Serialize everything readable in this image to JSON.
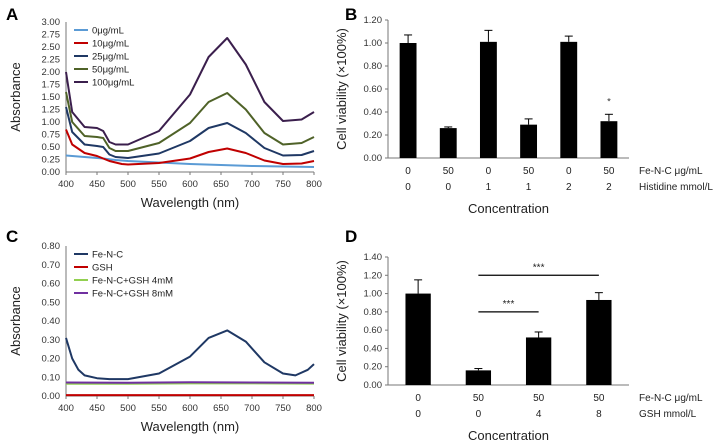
{
  "chart_data": [
    {
      "id": "A",
      "type": "line",
      "panel_label": "A",
      "xlabel": "Wavelength (nm)",
      "ylabel": "Absorbance",
      "xlim": [
        400,
        800
      ],
      "ylim": [
        0,
        3.0
      ],
      "xticks": [
        400,
        450,
        500,
        550,
        600,
        650,
        700,
        750,
        800
      ],
      "yticks": [
        0.0,
        0.25,
        0.5,
        0.75,
        1.0,
        1.25,
        1.5,
        1.75,
        2.0,
        2.25,
        2.5,
        2.75,
        3.0
      ],
      "ytick_labels": [
        "0.00",
        "0.25",
        "0.50",
        "0.75",
        "1.00",
        "1.25",
        "1.50",
        "1.75",
        "2.00",
        "2.25",
        "2.50",
        "2.75",
        "3.00"
      ],
      "xtick_labels": [
        "400",
        "450",
        "500",
        "550",
        "600",
        "650",
        "700",
        "750",
        "800"
      ],
      "legend_position": "top-left",
      "series": [
        {
          "name": "0μg/mL",
          "color": "#5b9bd5",
          "x": [
            400,
            420,
            440,
            460,
            480,
            500,
            550,
            600,
            650,
            700,
            750,
            800
          ],
          "y": [
            0.33,
            0.31,
            0.29,
            0.27,
            0.24,
            0.22,
            0.19,
            0.16,
            0.14,
            0.12,
            0.11,
            0.1
          ]
        },
        {
          "name": "10μg/mL",
          "color": "#c00000",
          "x": [
            400,
            410,
            430,
            450,
            470,
            490,
            500,
            550,
            600,
            630,
            660,
            690,
            720,
            750,
            780,
            800
          ],
          "y": [
            0.85,
            0.55,
            0.38,
            0.32,
            0.22,
            0.16,
            0.15,
            0.18,
            0.27,
            0.4,
            0.47,
            0.38,
            0.23,
            0.16,
            0.17,
            0.22
          ]
        },
        {
          "name": "25μg/mL",
          "color": "#1f3864",
          "x": [
            400,
            410,
            430,
            450,
            460,
            470,
            480,
            500,
            550,
            600,
            630,
            660,
            690,
            720,
            750,
            780,
            800
          ],
          "y": [
            1.3,
            0.8,
            0.55,
            0.52,
            0.5,
            0.35,
            0.3,
            0.28,
            0.37,
            0.62,
            0.88,
            0.98,
            0.78,
            0.48,
            0.33,
            0.34,
            0.42
          ]
        },
        {
          "name": "50μg/mL",
          "color": "#4f6228",
          "x": [
            400,
            410,
            430,
            450,
            460,
            470,
            480,
            500,
            550,
            600,
            630,
            660,
            690,
            720,
            750,
            780,
            800
          ],
          "y": [
            1.6,
            1.0,
            0.72,
            0.7,
            0.68,
            0.48,
            0.42,
            0.42,
            0.58,
            0.98,
            1.4,
            1.58,
            1.25,
            0.78,
            0.55,
            0.58,
            0.7
          ]
        },
        {
          "name": "100μg/mL",
          "color": "#3b1f4d",
          "x": [
            400,
            410,
            430,
            450,
            460,
            470,
            480,
            500,
            550,
            600,
            630,
            660,
            690,
            720,
            750,
            780,
            800
          ],
          "y": [
            2.0,
            1.2,
            0.9,
            0.88,
            0.82,
            0.6,
            0.55,
            0.55,
            0.82,
            1.55,
            2.3,
            2.68,
            2.15,
            1.4,
            1.02,
            1.05,
            1.2
          ]
        }
      ]
    },
    {
      "id": "B",
      "type": "bar",
      "panel_label": "B",
      "ylabel": "Cell viability (×100%)",
      "xlabel": "Concentration",
      "ylim": [
        0,
        1.2
      ],
      "yticks": [
        0,
        0.2,
        0.4,
        0.6,
        0.8,
        1.0,
        1.2
      ],
      "ytick_labels": [
        "0.00",
        "0.20",
        "0.40",
        "0.60",
        "0.80",
        "1.00",
        "1.20"
      ],
      "values": [
        1.0,
        0.26,
        1.01,
        0.29,
        1.01,
        0.32
      ],
      "errors": [
        0.07,
        0.01,
        0.1,
        0.05,
        0.05,
        0.06
      ],
      "bar_color": "#000000",
      "category_rows": [
        {
          "label": "Fe-N-C μg/mL",
          "values": [
            "0",
            "50",
            "0",
            "50",
            "0",
            "50"
          ]
        },
        {
          "label": "Histidine mmol/L",
          "values": [
            "0",
            "0",
            "1",
            "1",
            "2",
            "2"
          ]
        }
      ],
      "annotations": [
        {
          "bar_index": 5,
          "text": "*"
        }
      ]
    },
    {
      "id": "C",
      "type": "line",
      "panel_label": "C",
      "xlabel": "Wavelength (nm)",
      "ylabel": "Absorbance",
      "xlim": [
        400,
        800
      ],
      "ylim": [
        0,
        0.8
      ],
      "xticks": [
        400,
        450,
        500,
        550,
        600,
        650,
        700,
        750,
        800
      ],
      "xtick_labels": [
        "400",
        "450",
        "500",
        "550",
        "600",
        "650",
        "700",
        "750",
        "800"
      ],
      "yticks": [
        0,
        0.1,
        0.2,
        0.3,
        0.4,
        0.5,
        0.6,
        0.7,
        0.8
      ],
      "ytick_labels": [
        "0.00",
        "0.10",
        "0.20",
        "0.30",
        "0.40",
        "0.50",
        "0.60",
        "0.70",
        "0.80"
      ],
      "legend_position": "top-left",
      "series": [
        {
          "name": "Fe-N-C",
          "color": "#1f3864",
          "x": [
            400,
            410,
            420,
            430,
            450,
            470,
            500,
            550,
            600,
            630,
            660,
            690,
            720,
            750,
            770,
            790,
            800
          ],
          "y": [
            0.31,
            0.2,
            0.14,
            0.11,
            0.095,
            0.09,
            0.09,
            0.12,
            0.21,
            0.31,
            0.35,
            0.29,
            0.18,
            0.12,
            0.11,
            0.14,
            0.17
          ]
        },
        {
          "name": "GSH",
          "color": "#c00000",
          "x": [
            400,
            500,
            600,
            700,
            800
          ],
          "y": [
            0.005,
            0.005,
            0.005,
            0.005,
            0.005
          ]
        },
        {
          "name": "Fe-N-C+GSH 4mM",
          "color": "#92d050",
          "x": [
            400,
            500,
            600,
            700,
            800
          ],
          "y": [
            0.065,
            0.065,
            0.067,
            0.067,
            0.066
          ]
        },
        {
          "name": "Fe-N-C+GSH 8mM",
          "color": "#7030a0",
          "x": [
            400,
            500,
            600,
            700,
            800
          ],
          "y": [
            0.072,
            0.071,
            0.073,
            0.072,
            0.071
          ]
        }
      ]
    },
    {
      "id": "D",
      "type": "bar",
      "panel_label": "D",
      "ylabel": "Cell viability (×100%)",
      "xlabel": "Concentration",
      "ylim": [
        0,
        1.4
      ],
      "yticks": [
        0,
        0.2,
        0.4,
        0.6,
        0.8,
        1.0,
        1.2,
        1.4
      ],
      "ytick_labels": [
        "0.00",
        "0.20",
        "0.40",
        "0.60",
        "0.80",
        "1.00",
        "1.20",
        "1.40"
      ],
      "values": [
        1.0,
        0.16,
        0.52,
        0.93
      ],
      "errors": [
        0.15,
        0.02,
        0.06,
        0.08
      ],
      "bar_color": "#000000",
      "category_rows": [
        {
          "label": "Fe-N-C μg/mL",
          "values": [
            "0",
            "50",
            "50",
            "50"
          ]
        },
        {
          "label": "GSH mmol/L",
          "values": [
            "0",
            "0",
            "4",
            "8"
          ]
        }
      ],
      "significance": [
        {
          "from": 1,
          "to": 3,
          "y": 1.2,
          "text": "***"
        },
        {
          "from": 1,
          "to": 2,
          "y": 0.8,
          "text": "***"
        }
      ]
    }
  ]
}
